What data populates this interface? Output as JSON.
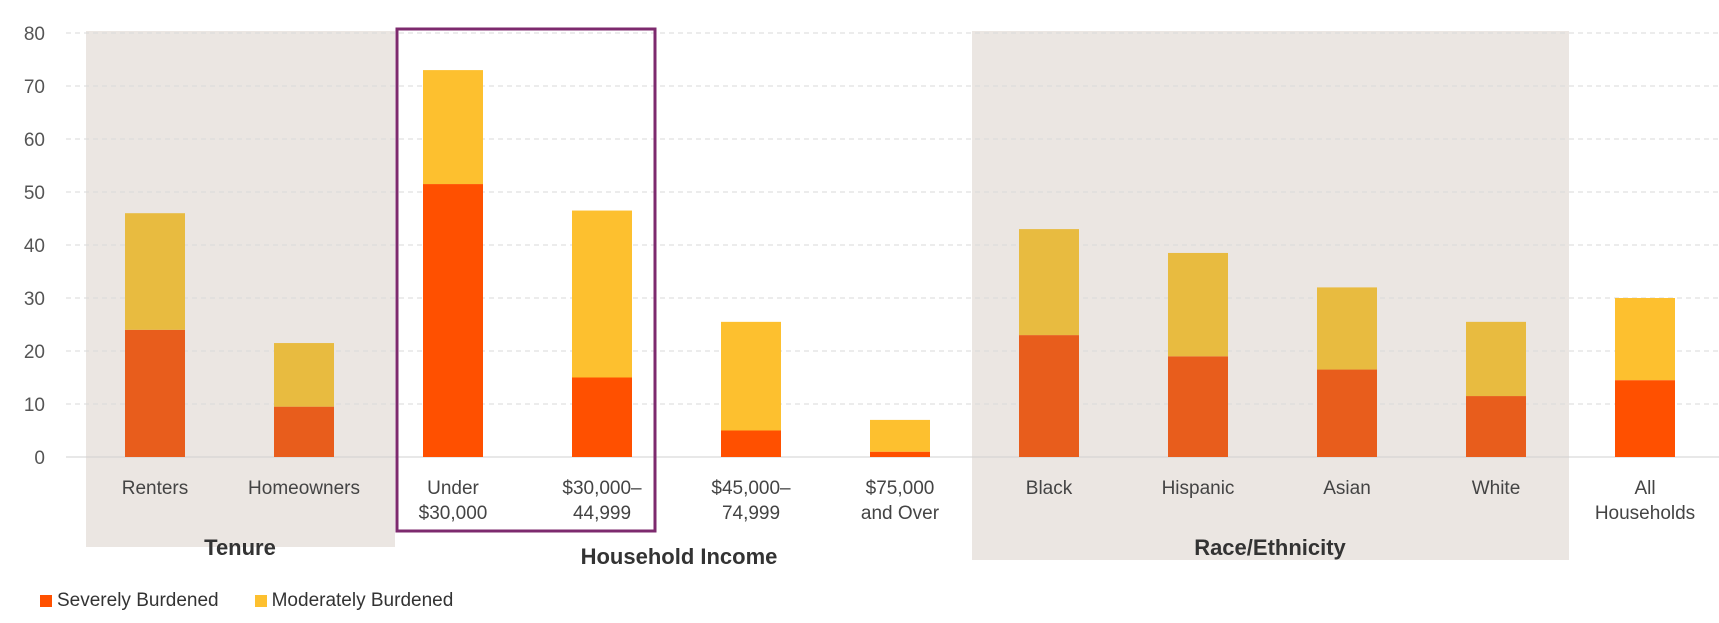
{
  "chart_data": {
    "type": "bar",
    "stacked": true,
    "ylim": [
      0,
      80
    ],
    "yticks": [
      0,
      10,
      20,
      30,
      40,
      50,
      60,
      70,
      80
    ],
    "grid": true,
    "legend_position": "bottom-left",
    "categories": [
      [
        "Renters"
      ],
      [
        "Homeowners"
      ],
      [
        "Under",
        "$30,000"
      ],
      [
        "$30,000–",
        "44,999"
      ],
      [
        "$45,000–",
        "74,999"
      ],
      [
        "$75,000",
        "and Over"
      ],
      [
        "Black"
      ],
      [
        "Hispanic"
      ],
      [
        "Asian"
      ],
      [
        "White"
      ],
      [
        "All",
        "Households"
      ]
    ],
    "series": [
      {
        "name": "Severely Burdened",
        "values": [
          24,
          9.5,
          51.5,
          15,
          5,
          1,
          23,
          19,
          16.5,
          11.5,
          14.5
        ]
      },
      {
        "name": "Moderately Burdened",
        "values": [
          22,
          12,
          21.5,
          31.5,
          20.5,
          6,
          20,
          19.5,
          15.5,
          14,
          15.5
        ]
      }
    ],
    "colors": {
      "severe_alt": "#e85d1c",
      "severe_bright": "#ff5000",
      "moderate_alt": "#e8bb40",
      "moderate_bright": "#fdc02f"
    },
    "bar_color_variant": [
      "alt",
      "alt",
      "bright",
      "bright",
      "bright",
      "bright",
      "alt",
      "alt",
      "alt",
      "alt",
      "bright"
    ],
    "groups": [
      {
        "label": "Tenure",
        "shaded": true
      },
      {
        "label": "Household Income",
        "shaded": false
      },
      {
        "label": "Race/Ethnicity",
        "shaded": true
      }
    ],
    "highlight_box_color": "#7d2a6e",
    "grid_color": "#d9d9d9",
    "shade_color": "#ebe6e2"
  }
}
